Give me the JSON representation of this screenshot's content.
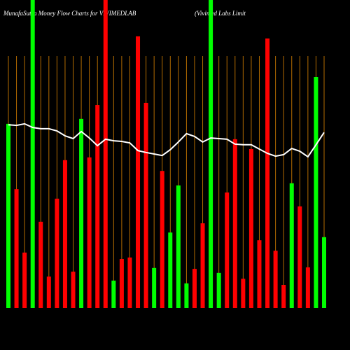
{
  "chart_data": {
    "type": "bar",
    "title": "MunafaSutra  Money Flow  Charts for VIVIMEDLAB",
    "subtitle": "(Vivimed Labs Limit",
    "values": [
      59.8,
      38.6,
      18,
      100,
      28,
      10.2,
      35.5,
      48,
      11.8,
      61.4,
      48.9,
      65.9,
      100,
      8.9,
      15.9,
      16.4,
      88.2,
      66.6,
      13,
      44.5,
      24.5,
      39.8,
      8,
      12.7,
      27.5,
      100,
      11.4,
      37.5,
      54.8,
      9.5,
      51.6,
      22,
      87.5,
      18.6,
      7.5,
      40.5,
      33,
      13.2,
      75,
      23
    ],
    "colors": [
      "#00ff00",
      "#ff0000",
      "#ff0000",
      "#00ff00",
      "#ff0000",
      "#ff0000",
      "#ff0000",
      "#ff0000",
      "#ff0000",
      "#00ff00",
      "#ff0000",
      "#ff0000",
      "#ff0000",
      "#00ff00",
      "#ff0000",
      "#ff0000",
      "#ff0000",
      "#ff0000",
      "#00ff00",
      "#ff0000",
      "#00ff00",
      "#00ff00",
      "#00ff00",
      "#ff0000",
      "#ff0000",
      "#00ff00",
      "#00ff00",
      "#ff0000",
      "#ff0000",
      "#ff0000",
      "#ff0000",
      "#ff0000",
      "#ff0000",
      "#ff0000",
      "#ff0000",
      "#00ff00",
      "#ff0000",
      "#ff0000",
      "#00ff00",
      "#00ff00"
    ],
    "line": {
      "color": "#ffffff",
      "values": [
        59.5,
        59.3,
        59.8,
        58.6,
        58.2,
        58.2,
        57.5,
        55.9,
        55,
        57.3,
        55.2,
        52.7,
        54.8,
        54.3,
        54.1,
        53.6,
        51.1,
        50.5,
        50,
        49.5,
        51.4,
        53.9,
        56.6,
        55.7,
        53.9,
        55.2,
        55,
        54.8,
        53.2,
        53,
        53,
        51.6,
        50.2,
        49.3,
        49.8,
        51.8,
        50.9,
        49.1,
        53,
        57
      ]
    },
    "ylim": [
      0,
      100
    ],
    "grid": true,
    "grid_color": "#b36b00"
  }
}
